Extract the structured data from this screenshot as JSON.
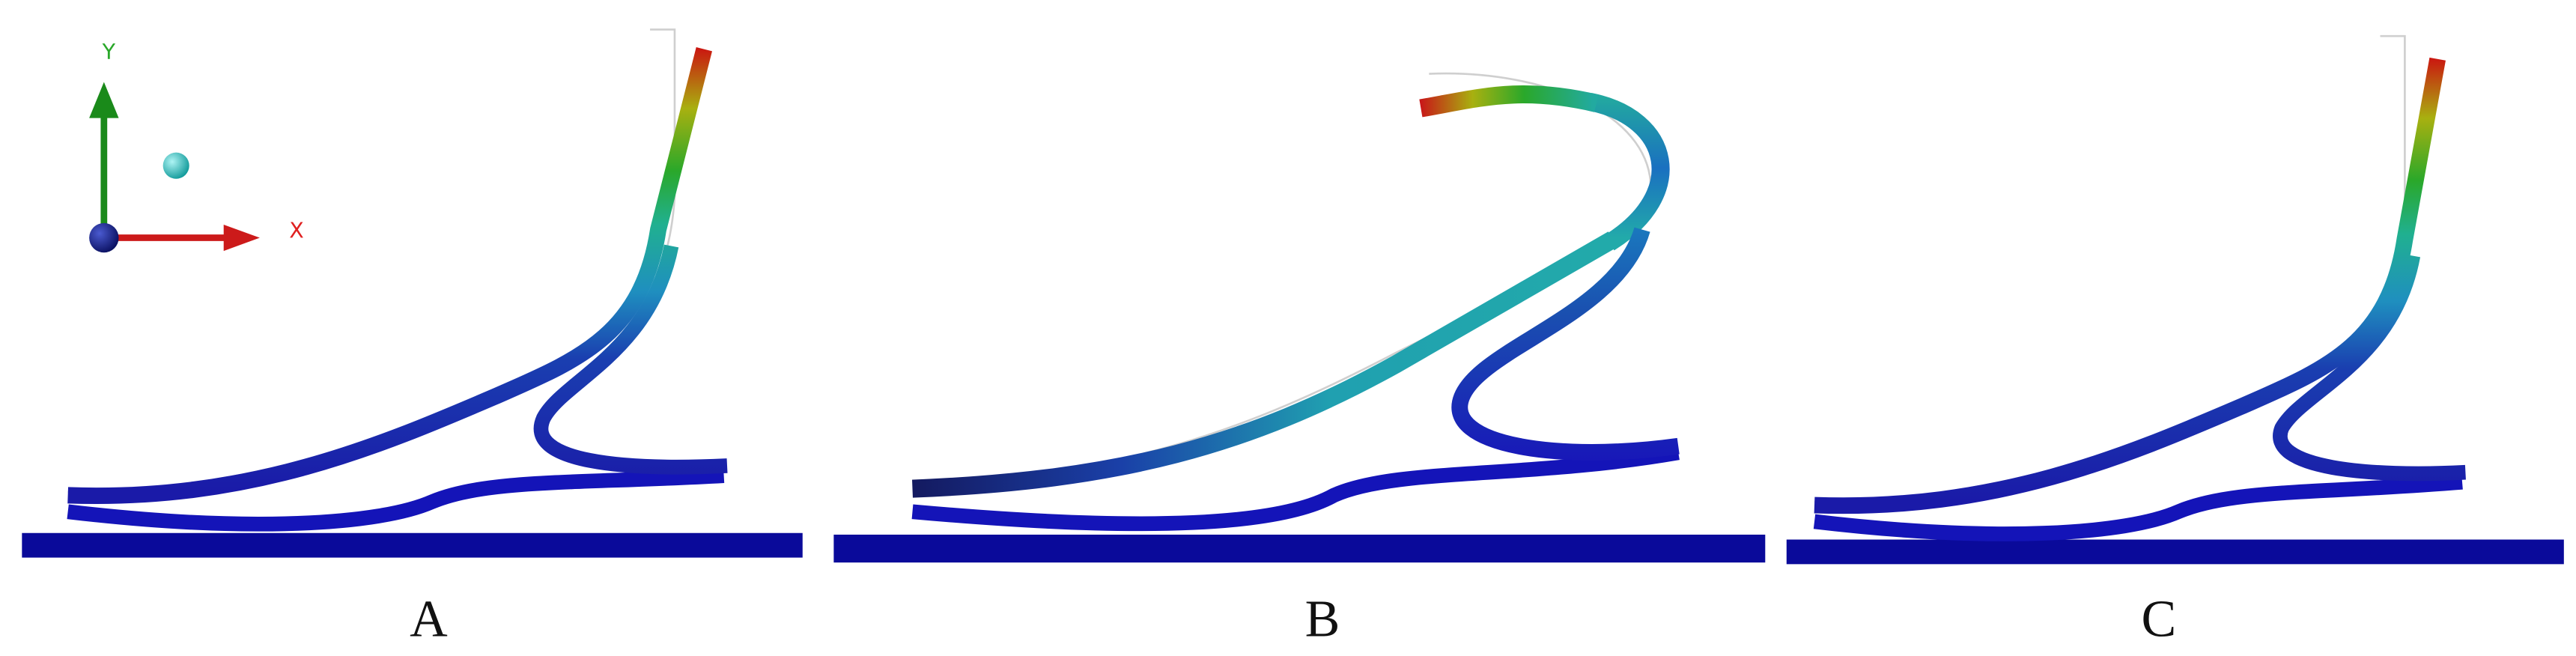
{
  "axes_triad": {
    "y_label": "Y",
    "x_label": "X"
  },
  "panels": [
    {
      "label": "A"
    },
    {
      "label": "B"
    },
    {
      "label": "C"
    }
  ]
}
